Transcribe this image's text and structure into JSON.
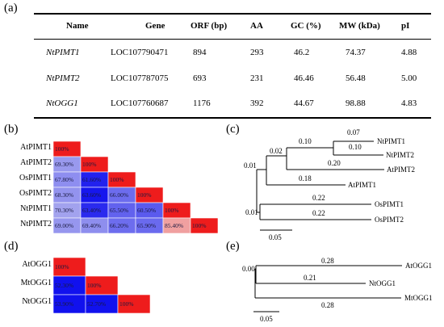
{
  "panel_labels": {
    "a": "(a)",
    "b": "(b)",
    "c": "(c)",
    "d": "(d)",
    "e": "(e)"
  },
  "table": {
    "headers": [
      "Name",
      "Gene",
      "ORF (bp)",
      "AA",
      "GC (%)",
      "MW (kDa)",
      "pI"
    ],
    "rows": [
      [
        "NtPIMT1",
        "LOC107790471",
        "894",
        "293",
        "46.2",
        "74.37",
        "4.88"
      ],
      [
        "NtPIMT2",
        "LOC107787075",
        "693",
        "231",
        "46.46",
        "56.48",
        "5.00"
      ],
      [
        "NtOGG1",
        "LOC107760687",
        "1176",
        "392",
        "44.67",
        "98.88",
        "4.83"
      ]
    ]
  },
  "heatmap_b": {
    "labels": [
      "AtPIMT1",
      "AtPIMT2",
      "OsPIMT1",
      "OsPIMT2",
      "NtPIMT1",
      "NtPIMT2"
    ],
    "rows": [
      [
        "100%"
      ],
      [
        "69.30%",
        "100%"
      ],
      [
        "67.80%",
        "61.60%",
        "100%"
      ],
      [
        "68.30%",
        "63.60%",
        "66.00%",
        "100%"
      ],
      [
        "70.30%",
        "63.40%",
        "65.50%",
        "60.50%",
        "100%"
      ],
      [
        "69.00%",
        "69.40%",
        "66.20%",
        "65.90%",
        "85.40%",
        "100%"
      ]
    ],
    "colors": [
      [
        "#ee1c1c"
      ],
      [
        "#9999ee",
        "#ee1c1c"
      ],
      [
        "#8e8ef0",
        "#2222ee",
        "#ee1c1c"
      ],
      [
        "#9393ee",
        "#1616ee",
        "#6c6cee",
        "#ee1c1c"
      ],
      [
        "#a2a2ee",
        "#2a2aee",
        "#6262ee",
        "#5a5aee",
        "#ee1c1c"
      ],
      [
        "#9696ee",
        "#8e8eee",
        "#6d6dee",
        "#6a6aee",
        "#f0a0a0",
        "#ee1c1c"
      ]
    ]
  },
  "heatmap_d": {
    "labels": [
      "AtOGG1",
      "MtOGG1",
      "NtOGG1"
    ],
    "rows": [
      [
        "100%"
      ],
      [
        "52.30%",
        "100%"
      ],
      [
        "53.90%",
        "52.70%",
        "100%"
      ]
    ],
    "colors": [
      [
        "#ee1c1c"
      ],
      [
        "#1111ee",
        "#ee1c1c"
      ],
      [
        "#1111ee",
        "#1111ee",
        "#ee1c1c"
      ]
    ]
  },
  "tree_c": {
    "leaves": [
      "NtPIMT1",
      "NtPIMT2",
      "AtPIMT2",
      "AtPIMT1",
      "OsPIMT1",
      "OsPIMT2"
    ],
    "branch_labels": [
      "0.07",
      "0.10",
      "0.02",
      "0.10",
      "0.20",
      "0.01",
      "0.18",
      "0.22",
      "0.01",
      "0.22"
    ],
    "scale": "0.05"
  },
  "tree_e": {
    "leaves": [
      "AtOGG1",
      "NtOGG1",
      "MtOGG1"
    ],
    "branch_labels": [
      "0.00",
      "0.28",
      "0.21",
      "0.28"
    ],
    "scale": "0.05"
  }
}
